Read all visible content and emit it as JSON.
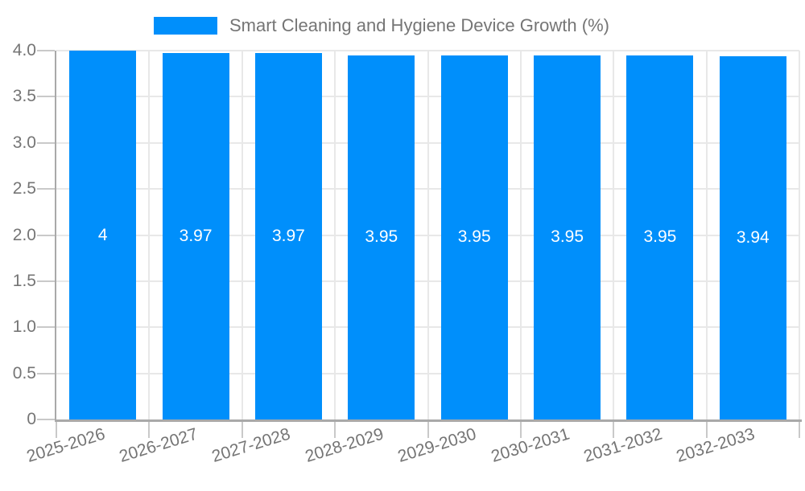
{
  "chart_data": {
    "type": "bar",
    "title": "Smart Cleaning and Hygiene Device Growth (%)",
    "legend_entries": [
      "Smart Cleaning and Hygiene Device Growth (%)"
    ],
    "legend_position": "top",
    "categories": [
      "2025-2026",
      "2026-2027",
      "2027-2028",
      "2028-2029",
      "2029-2030",
      "2030-2031",
      "2031-2032",
      "2032-2033"
    ],
    "values": [
      4,
      3.97,
      3.97,
      3.95,
      3.95,
      3.95,
      3.95,
      3.94
    ],
    "value_labels": [
      "4",
      "3.97",
      "3.97",
      "3.95",
      "3.95",
      "3.95",
      "3.95",
      "3.94"
    ],
    "xlabel": "",
    "ylabel": "",
    "ylim": [
      0,
      4
    ],
    "y_tick_values": [
      0,
      0.5,
      1,
      1.5,
      2,
      2.5,
      3,
      3.5,
      4
    ],
    "y_tick_labels": [
      "0",
      "0.5",
      "1.0",
      "1.5",
      "2.0",
      "2.5",
      "3.0",
      "3.5",
      "4.0"
    ],
    "x_tick_rotation_deg": -17,
    "grid": true,
    "colors": {
      "bar": "#008FFB",
      "bar_label": "#FFFFFF",
      "axis_line": "#A9A9A9",
      "grid_line": "#E8E8E8",
      "tick_mark": "#C9C9C9",
      "text": "#757575",
      "background": "#FFFFFF"
    }
  }
}
